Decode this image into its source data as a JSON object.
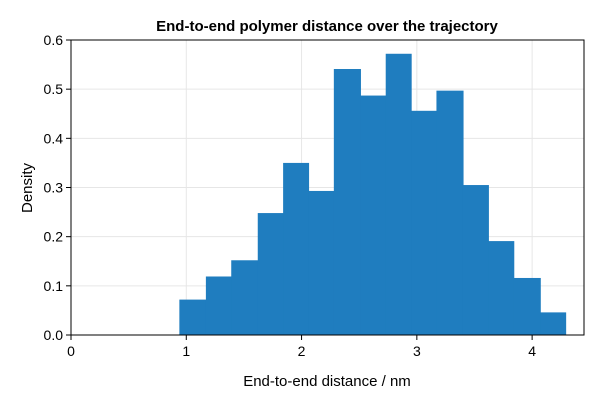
{
  "chart_data": {
    "type": "bar",
    "title": "End-to-end polymer distance over the trajectory",
    "xlabel": "End-to-end distance / nm",
    "ylabel": "Density",
    "xlim": [
      0,
      4.45
    ],
    "ylim": [
      0,
      0.6
    ],
    "xticks": [
      0,
      1,
      2,
      3,
      4
    ],
    "xtick_labels": [
      "0",
      "1",
      "2",
      "3",
      "4"
    ],
    "yticks": [
      0.0,
      0.1,
      0.2,
      0.3,
      0.4,
      0.5,
      0.6
    ],
    "ytick_labels": [
      "0.0",
      "0.1",
      "0.2",
      "0.3",
      "0.4",
      "0.5",
      "0.6"
    ],
    "grid": true,
    "legend": "none",
    "bar_color": "#1f7dbf",
    "bins": [
      {
        "x0": 0.94,
        "x1": 1.17,
        "value": 0.072
      },
      {
        "x0": 1.17,
        "x1": 1.39,
        "value": 0.119
      },
      {
        "x0": 1.39,
        "x1": 1.62,
        "value": 0.152
      },
      {
        "x0": 1.62,
        "x1": 1.84,
        "value": 0.248
      },
      {
        "x0": 1.84,
        "x1": 2.06,
        "value": 0.35
      },
      {
        "x0": 2.06,
        "x1": 2.28,
        "value": 0.293
      },
      {
        "x0": 2.28,
        "x1": 2.51,
        "value": 0.541
      },
      {
        "x0": 2.51,
        "x1": 2.73,
        "value": 0.487
      },
      {
        "x0": 2.73,
        "x1": 2.95,
        "value": 0.572
      },
      {
        "x0": 2.95,
        "x1": 3.17,
        "value": 0.456
      },
      {
        "x0": 3.17,
        "x1": 3.4,
        "value": 0.497
      },
      {
        "x0": 3.4,
        "x1": 3.62,
        "value": 0.305
      },
      {
        "x0": 3.62,
        "x1": 3.84,
        "value": 0.191
      },
      {
        "x0": 3.84,
        "x1": 4.07,
        "value": 0.116
      },
      {
        "x0": 4.07,
        "x1": 4.29,
        "value": 0.046
      }
    ]
  }
}
